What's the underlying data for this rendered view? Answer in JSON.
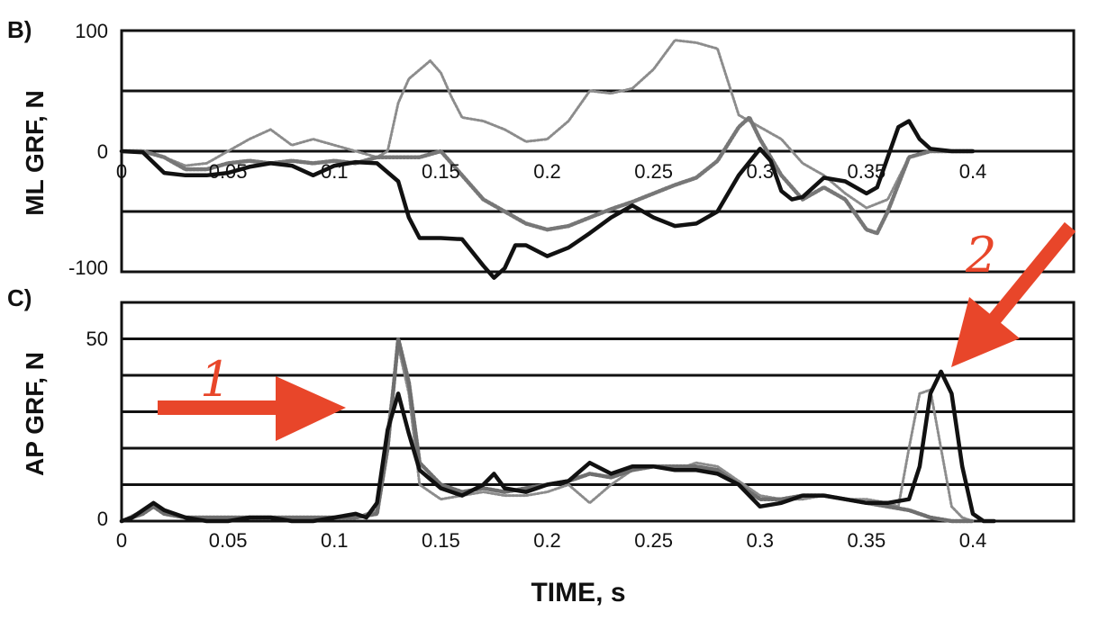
{
  "chart_data": [
    {
      "id": "B",
      "type": "line",
      "panel_label": "B)",
      "xlabel": "",
      "ylabel": "ML GRF, N",
      "xlim": [
        0,
        0.4
      ],
      "ylim": [
        -100,
        100
      ],
      "x_ticks": [
        "0",
        "0.05",
        "0.1",
        "0.15",
        "0.2",
        "0.25",
        "0.3",
        "0.35",
        "0.4"
      ],
      "y_ticks": [
        "100",
        "0",
        "-100"
      ],
      "grid": true,
      "series": [
        {
          "color": "#111111",
          "style": "solid",
          "points": [
            [
              0,
              0
            ],
            [
              0.01,
              -1
            ],
            [
              0.02,
              -18
            ],
            [
              0.03,
              -20
            ],
            [
              0.04,
              -20
            ],
            [
              0.05,
              -18
            ],
            [
              0.06,
              -13
            ],
            [
              0.07,
              -10
            ],
            [
              0.08,
              -12
            ],
            [
              0.085,
              -16
            ],
            [
              0.09,
              -20
            ],
            [
              0.1,
              -12
            ],
            [
              0.11,
              -9
            ],
            [
              0.12,
              -10
            ],
            [
              0.13,
              -25
            ],
            [
              0.135,
              -55
            ],
            [
              0.14,
              -72
            ],
            [
              0.15,
              -72
            ],
            [
              0.16,
              -73
            ],
            [
              0.17,
              -95
            ],
            [
              0.175,
              -105
            ],
            [
              0.18,
              -97
            ],
            [
              0.185,
              -78
            ],
            [
              0.19,
              -78
            ],
            [
              0.2,
              -87
            ],
            [
              0.21,
              -80
            ],
            [
              0.22,
              -68
            ],
            [
              0.23,
              -55
            ],
            [
              0.24,
              -45
            ],
            [
              0.25,
              -55
            ],
            [
              0.26,
              -62
            ],
            [
              0.27,
              -60
            ],
            [
              0.28,
              -50
            ],
            [
              0.29,
              -20
            ],
            [
              0.3,
              2
            ],
            [
              0.305,
              -8
            ],
            [
              0.31,
              -33
            ],
            [
              0.315,
              -40
            ],
            [
              0.32,
              -38
            ],
            [
              0.33,
              -22
            ],
            [
              0.34,
              -25
            ],
            [
              0.35,
              -35
            ],
            [
              0.355,
              -30
            ],
            [
              0.36,
              -5
            ],
            [
              0.365,
              20
            ],
            [
              0.37,
              25
            ],
            [
              0.375,
              10
            ],
            [
              0.38,
              2
            ],
            [
              0.39,
              0
            ],
            [
              0.4,
              0
            ]
          ]
        },
        {
          "color": "#8c8c8c",
          "style": "dotted",
          "points": [
            [
              0,
              0
            ],
            [
              0.01,
              0
            ],
            [
              0.02,
              -5
            ],
            [
              0.03,
              -12
            ],
            [
              0.04,
              -10
            ],
            [
              0.05,
              0
            ],
            [
              0.06,
              10
            ],
            [
              0.07,
              18
            ],
            [
              0.08,
              5
            ],
            [
              0.09,
              10
            ],
            [
              0.1,
              5
            ],
            [
              0.11,
              0
            ],
            [
              0.12,
              -5
            ],
            [
              0.125,
              0
            ],
            [
              0.13,
              40
            ],
            [
              0.135,
              60
            ],
            [
              0.145,
              75
            ],
            [
              0.15,
              65
            ],
            [
              0.155,
              45
            ],
            [
              0.16,
              28
            ],
            [
              0.17,
              25
            ],
            [
              0.18,
              18
            ],
            [
              0.19,
              8
            ],
            [
              0.2,
              10
            ],
            [
              0.21,
              25
            ],
            [
              0.22,
              50
            ],
            [
              0.23,
              48
            ],
            [
              0.24,
              52
            ],
            [
              0.25,
              68
            ],
            [
              0.26,
              92
            ],
            [
              0.27,
              90
            ],
            [
              0.28,
              85
            ],
            [
              0.29,
              30
            ],
            [
              0.3,
              20
            ],
            [
              0.31,
              10
            ],
            [
              0.32,
              -10
            ],
            [
              0.33,
              -20
            ],
            [
              0.34,
              -35
            ],
            [
              0.35,
              -47
            ],
            [
              0.36,
              -40
            ],
            [
              0.37,
              -5
            ],
            [
              0.38,
              0
            ],
            [
              0.39,
              0
            ],
            [
              0.4,
              0
            ]
          ]
        },
        {
          "color": "#777777",
          "style": "dotted-thick",
          "points": [
            [
              0,
              0
            ],
            [
              0.01,
              0
            ],
            [
              0.02,
              -5
            ],
            [
              0.03,
              -15
            ],
            [
              0.04,
              -15
            ],
            [
              0.05,
              -10
            ],
            [
              0.06,
              -8
            ],
            [
              0.07,
              -10
            ],
            [
              0.08,
              -8
            ],
            [
              0.09,
              -10
            ],
            [
              0.1,
              -8
            ],
            [
              0.11,
              -10
            ],
            [
              0.12,
              -5
            ],
            [
              0.13,
              -5
            ],
            [
              0.14,
              -5
            ],
            [
              0.15,
              0
            ],
            [
              0.16,
              -20
            ],
            [
              0.17,
              -40
            ],
            [
              0.18,
              -50
            ],
            [
              0.19,
              -60
            ],
            [
              0.2,
              -65
            ],
            [
              0.21,
              -62
            ],
            [
              0.22,
              -55
            ],
            [
              0.23,
              -48
            ],
            [
              0.24,
              -42
            ],
            [
              0.25,
              -35
            ],
            [
              0.26,
              -28
            ],
            [
              0.27,
              -22
            ],
            [
              0.28,
              -8
            ],
            [
              0.29,
              20
            ],
            [
              0.295,
              28
            ],
            [
              0.3,
              10
            ],
            [
              0.31,
              -20
            ],
            [
              0.32,
              -40
            ],
            [
              0.33,
              -30
            ],
            [
              0.34,
              -40
            ],
            [
              0.35,
              -65
            ],
            [
              0.355,
              -68
            ],
            [
              0.36,
              -50
            ],
            [
              0.37,
              -5
            ],
            [
              0.38,
              0
            ],
            [
              0.39,
              0
            ],
            [
              0.4,
              0
            ]
          ]
        }
      ]
    },
    {
      "id": "C",
      "type": "line",
      "panel_label": "C)",
      "xlabel": "TIME, s",
      "ylabel": "AP GRF, N",
      "xlim": [
        0,
        0.46
      ],
      "ylim": [
        0,
        60
      ],
      "x_ticks": [
        "0",
        "0.05",
        "0.1",
        "0.15",
        "0.2",
        "0.25",
        "0.3",
        "0.35",
        "0.4"
      ],
      "y_ticks": [
        "50",
        "0"
      ],
      "grid": true,
      "series": [
        {
          "color": "#111111",
          "style": "solid",
          "points": [
            [
              0,
              0
            ],
            [
              0.005,
              1
            ],
            [
              0.01,
              3
            ],
            [
              0.015,
              5
            ],
            [
              0.02,
              3
            ],
            [
              0.03,
              1
            ],
            [
              0.04,
              0
            ],
            [
              0.05,
              0
            ],
            [
              0.06,
              1
            ],
            [
              0.07,
              1
            ],
            [
              0.08,
              0
            ],
            [
              0.09,
              0
            ],
            [
              0.1,
              1
            ],
            [
              0.11,
              2
            ],
            [
              0.115,
              1
            ],
            [
              0.12,
              5
            ],
            [
              0.125,
              25
            ],
            [
              0.13,
              35
            ],
            [
              0.135,
              24
            ],
            [
              0.14,
              14
            ],
            [
              0.15,
              9
            ],
            [
              0.16,
              7
            ],
            [
              0.17,
              10
            ],
            [
              0.175,
              13
            ],
            [
              0.18,
              9
            ],
            [
              0.19,
              8
            ],
            [
              0.2,
              10
            ],
            [
              0.21,
              11
            ],
            [
              0.22,
              16
            ],
            [
              0.23,
              13
            ],
            [
              0.24,
              15
            ],
            [
              0.25,
              15
            ],
            [
              0.26,
              14
            ],
            [
              0.27,
              14
            ],
            [
              0.28,
              13
            ],
            [
              0.29,
              10
            ],
            [
              0.3,
              4
            ],
            [
              0.31,
              5
            ],
            [
              0.32,
              7
            ],
            [
              0.33,
              7
            ],
            [
              0.34,
              6
            ],
            [
              0.35,
              5
            ],
            [
              0.36,
              5
            ],
            [
              0.37,
              6
            ],
            [
              0.375,
              15
            ],
            [
              0.38,
              35
            ],
            [
              0.385,
              41
            ],
            [
              0.39,
              35
            ],
            [
              0.395,
              15
            ],
            [
              0.4,
              2
            ],
            [
              0.405,
              0
            ],
            [
              0.41,
              0
            ]
          ]
        },
        {
          "color": "#8c8c8c",
          "style": "dotted",
          "points": [
            [
              0,
              0
            ],
            [
              0.01,
              3
            ],
            [
              0.015,
              4
            ],
            [
              0.02,
              2
            ],
            [
              0.03,
              1
            ],
            [
              0.05,
              1
            ],
            [
              0.07,
              1
            ],
            [
              0.09,
              1
            ],
            [
              0.11,
              1
            ],
            [
              0.12,
              3
            ],
            [
              0.125,
              25
            ],
            [
              0.13,
              48
            ],
            [
              0.135,
              35
            ],
            [
              0.14,
              10
            ],
            [
              0.15,
              6
            ],
            [
              0.16,
              7
            ],
            [
              0.17,
              8
            ],
            [
              0.18,
              7
            ],
            [
              0.19,
              7
            ],
            [
              0.2,
              8
            ],
            [
              0.21,
              10
            ],
            [
              0.22,
              5
            ],
            [
              0.23,
              10
            ],
            [
              0.24,
              14
            ],
            [
              0.25,
              15
            ],
            [
              0.26,
              14
            ],
            [
              0.27,
              16
            ],
            [
              0.28,
              15
            ],
            [
              0.29,
              11
            ],
            [
              0.3,
              7
            ],
            [
              0.31,
              6
            ],
            [
              0.32,
              6
            ],
            [
              0.33,
              7
            ],
            [
              0.34,
              6
            ],
            [
              0.35,
              6
            ],
            [
              0.36,
              5
            ],
            [
              0.365,
              4
            ],
            [
              0.37,
              20
            ],
            [
              0.375,
              35
            ],
            [
              0.38,
              36
            ],
            [
              0.385,
              20
            ],
            [
              0.39,
              4
            ],
            [
              0.395,
              1
            ],
            [
              0.4,
              0
            ]
          ]
        },
        {
          "color": "#6f6f6f",
          "style": "dotted-thick",
          "points": [
            [
              0,
              0
            ],
            [
              0.01,
              2
            ],
            [
              0.015,
              4
            ],
            [
              0.02,
              2
            ],
            [
              0.03,
              1
            ],
            [
              0.05,
              1
            ],
            [
              0.07,
              1
            ],
            [
              0.09,
              1
            ],
            [
              0.11,
              1
            ],
            [
              0.12,
              2
            ],
            [
              0.125,
              20
            ],
            [
              0.13,
              50
            ],
            [
              0.135,
              38
            ],
            [
              0.14,
              16
            ],
            [
              0.15,
              10
            ],
            [
              0.16,
              8
            ],
            [
              0.17,
              9
            ],
            [
              0.18,
              8
            ],
            [
              0.19,
              9
            ],
            [
              0.2,
              10
            ],
            [
              0.21,
              11
            ],
            [
              0.22,
              13
            ],
            [
              0.23,
              12
            ],
            [
              0.24,
              14
            ],
            [
              0.25,
              15
            ],
            [
              0.26,
              15
            ],
            [
              0.27,
              15
            ],
            [
              0.28,
              14
            ],
            [
              0.29,
              10
            ],
            [
              0.3,
              6
            ],
            [
              0.31,
              6
            ],
            [
              0.32,
              7
            ],
            [
              0.33,
              7
            ],
            [
              0.34,
              6
            ],
            [
              0.35,
              5
            ],
            [
              0.36,
              4
            ],
            [
              0.37,
              3
            ],
            [
              0.38,
              1
            ],
            [
              0.39,
              0
            ],
            [
              0.4,
              0
            ]
          ]
        }
      ]
    }
  ],
  "annotations": [
    {
      "text": "1",
      "color": "#e8462a"
    },
    {
      "text": "2",
      "color": "#e8462a"
    }
  ]
}
